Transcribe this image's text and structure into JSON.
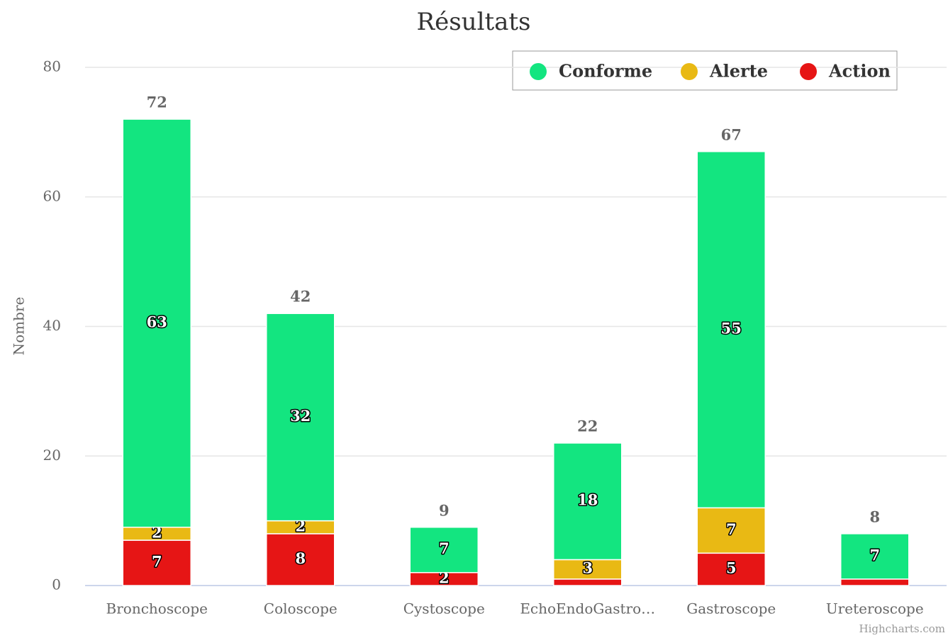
{
  "chart_data": {
    "type": "stacked_bar",
    "title": "Résultats",
    "y_axis_label": "Nombre",
    "credit": "Highcharts.com",
    "categories": [
      "Bronchoscope",
      "Coloscope",
      "Cystoscope",
      "EchoEndoGastro…",
      "Gastroscope",
      "Ureteroscope"
    ],
    "series": [
      {
        "name": "Conforme",
        "color": "#13e580",
        "values": [
          63,
          32,
          7,
          18,
          55,
          7
        ],
        "value_labels": [
          "63",
          "32",
          "7",
          "18",
          "55",
          "7"
        ]
      },
      {
        "name": "Alerte",
        "color": "#e9b914",
        "values": [
          2,
          2,
          0,
          3,
          7,
          0
        ],
        "value_labels": [
          "2",
          "2",
          null,
          "3",
          "7",
          null
        ]
      },
      {
        "name": "Action",
        "color": "#e61515",
        "values": [
          7,
          8,
          2,
          1,
          5,
          1
        ],
        "value_labels": [
          "7",
          "8",
          "2",
          null,
          "5",
          null
        ]
      }
    ],
    "totals": [
      "72",
      "42",
      "9",
      "22",
      "67",
      "8"
    ],
    "ylim": [
      0,
      80
    ],
    "yticks": [
      0,
      20,
      40,
      60,
      80
    ],
    "grid": true,
    "legend": "top-right"
  }
}
